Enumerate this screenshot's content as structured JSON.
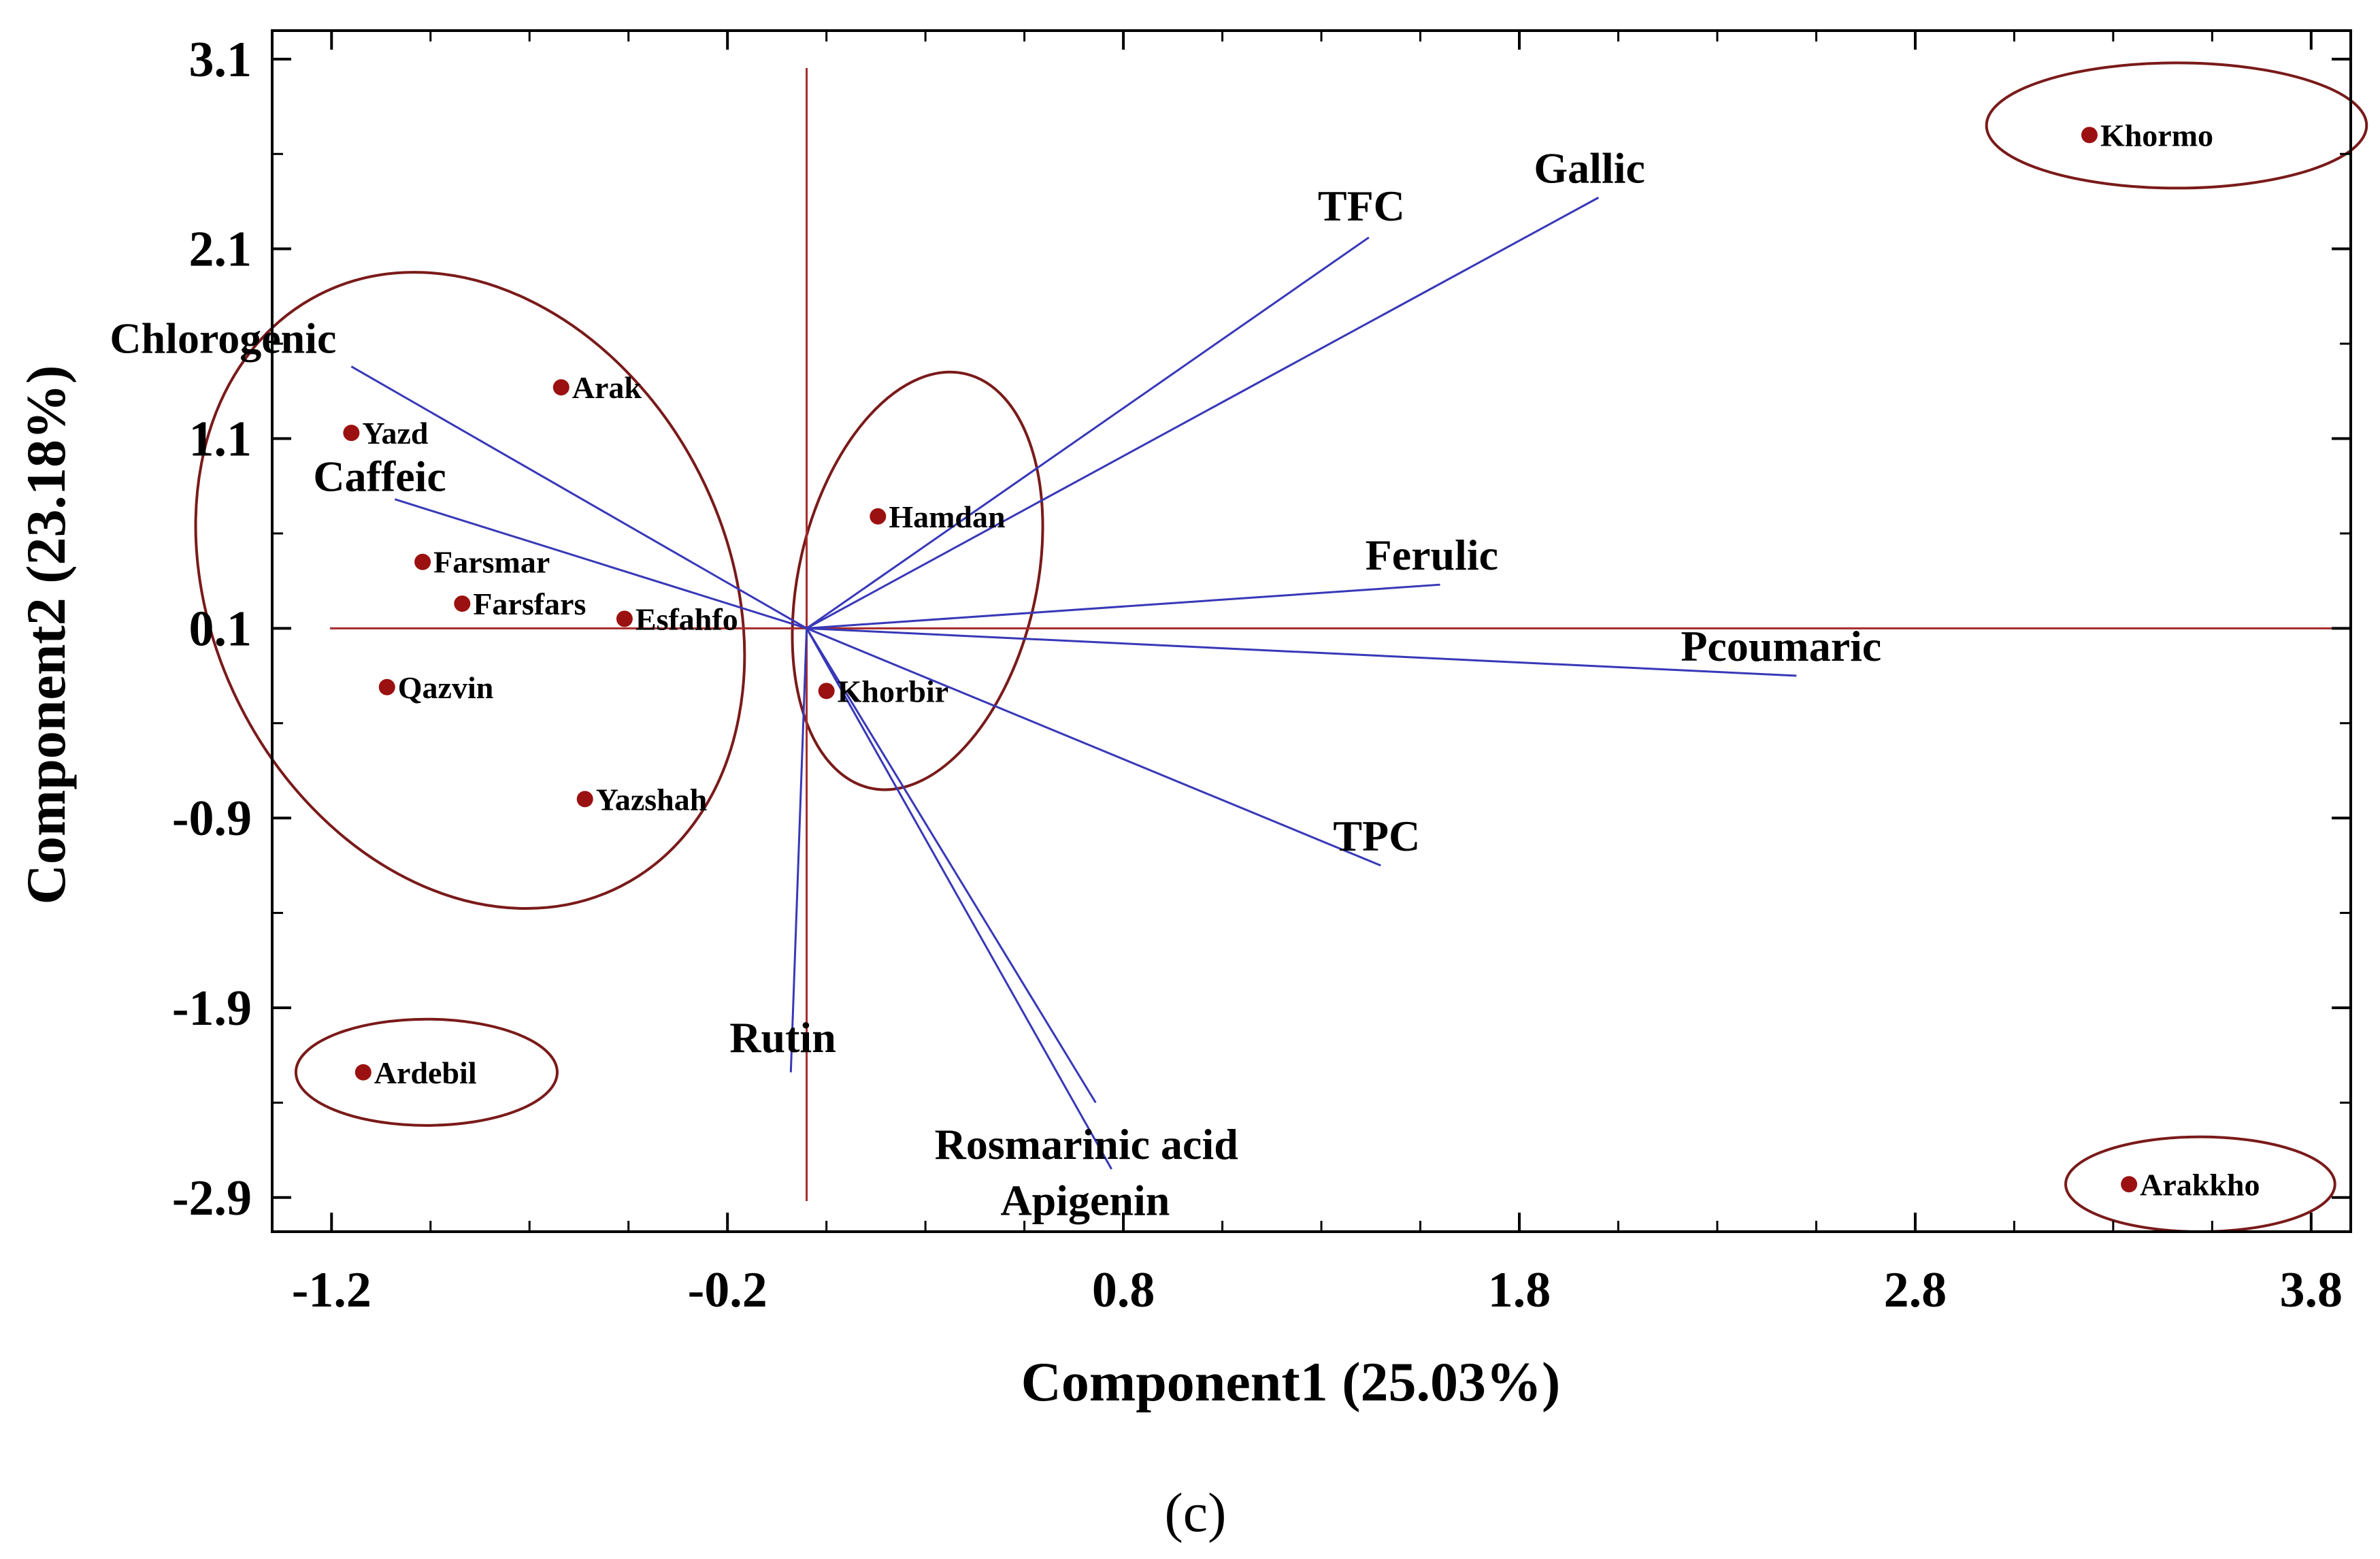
{
  "chart_data": {
    "type": "scatter",
    "subtype": "biplot",
    "xlabel": "Component1 (25.03%)",
    "ylabel": "Component2 (23.18%)",
    "caption": "(c)",
    "xlim": [
      -1.35,
      3.9
    ],
    "ylim": [
      -3.08,
      3.25
    ],
    "xticks": [
      -1.2,
      -0.2,
      0.8,
      1.8,
      2.8,
      3.8
    ],
    "xtick_labels": [
      "-1.2",
      "-0.2",
      "0.8",
      "1.8",
      "2.8",
      "3.8"
    ],
    "yticks": [
      3.1,
      2.1,
      1.1,
      0.1,
      -0.9,
      -1.9,
      -2.9
    ],
    "ytick_labels": [
      "3.1",
      "2.1",
      "1.1",
      "0.1",
      "-0.9",
      "-1.9",
      "-2.9"
    ],
    "grid": false,
    "origin": [
      0.0,
      0.1
    ],
    "axis_line_color": "#a52a2a",
    "vector_color": "#3838b8",
    "point_color": "#9b1010",
    "ellipse_color": "#7a1a1a",
    "points": [
      {
        "label": "Khormo",
        "x": 3.24,
        "y": 2.7
      },
      {
        "label": "Arak",
        "x": -0.62,
        "y": 1.37
      },
      {
        "label": "Yazd",
        "x": -1.15,
        "y": 1.13
      },
      {
        "label": "Hamdan",
        "x": 0.18,
        "y": 0.69
      },
      {
        "label": "Farsmar",
        "x": -0.97,
        "y": 0.45
      },
      {
        "label": "Farsfars",
        "x": -0.87,
        "y": 0.23
      },
      {
        "label": "Esfahfo",
        "x": -0.46,
        "y": 0.15
      },
      {
        "label": "Qazvin",
        "x": -1.06,
        "y": -0.21
      },
      {
        "label": "Khorbir",
        "x": 0.05,
        "y": -0.23
      },
      {
        "label": "Yazshah",
        "x": -0.56,
        "y": -0.8
      },
      {
        "label": "Ardebil",
        "x": -1.12,
        "y": -2.24
      },
      {
        "label": "Arakkho",
        "x": 3.34,
        "y": -2.83
      }
    ],
    "vectors": [
      {
        "label": "Chlorogenic",
        "x": -1.15,
        "y": 1.48
      },
      {
        "label": "Caffeic",
        "x": -1.04,
        "y": 0.78
      },
      {
        "label": "TFC",
        "x": 1.42,
        "y": 2.16
      },
      {
        "label": "Gallic",
        "x": 2.0,
        "y": 2.37
      },
      {
        "label": "Ferulic",
        "x": 1.6,
        "y": 0.33
      },
      {
        "label": "Pcoumaric",
        "x": 2.5,
        "y": -0.15
      },
      {
        "label": "TPC",
        "x": 1.45,
        "y": -1.15
      },
      {
        "label": "Apigenin",
        "x": 0.73,
        "y": -2.4
      },
      {
        "label": "Rosmarinic acid",
        "x": 0.77,
        "y": -2.75
      },
      {
        "label": "Rutin",
        "x": -0.04,
        "y": -2.24
      }
    ],
    "ellipses": [
      {
        "cx": 3.46,
        "cy": 2.75,
        "rx": 0.48,
        "ry": 0.33,
        "rotate_deg": 0
      },
      {
        "cx": -0.85,
        "cy": 0.3,
        "rx": 0.65,
        "ry": 1.75,
        "rotate_deg": -27
      },
      {
        "cx": 0.28,
        "cy": 0.35,
        "rx": 0.3,
        "ry": 1.12,
        "rotate_deg": 13
      },
      {
        "cx": -0.96,
        "cy": -2.24,
        "rx": 0.33,
        "ry": 0.28,
        "rotate_deg": 0
      },
      {
        "cx": 3.52,
        "cy": -2.83,
        "rx": 0.34,
        "ry": 0.25,
        "rotate_deg": 0
      }
    ]
  }
}
